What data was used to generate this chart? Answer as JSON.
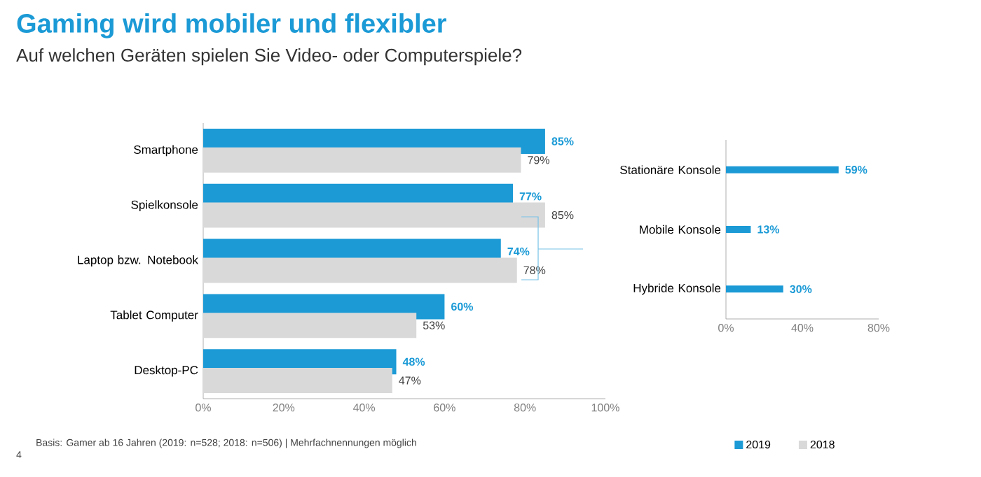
{
  "chart_data": [
    {
      "type": "bar",
      "orientation": "horizontal",
      "title": "Gaming wird mobiler und flexibler",
      "subtitle": "Auf welchen Geräten spielen Sie Video- oder Computerspiele?",
      "categories": [
        "Smartphone",
        "Spielkonsole",
        "Laptop bzw. Notebook",
        "Tablet Computer",
        "Desktop-PC"
      ],
      "series": [
        {
          "name": "2019",
          "color": "#1b9ad6",
          "values": [
            85,
            77,
            74,
            60,
            48
          ],
          "value_labels": [
            "85%",
            "77%",
            "74%",
            "60%",
            "48%"
          ]
        },
        {
          "name": "2018",
          "color": "#d9d9d9",
          "values": [
            79,
            85,
            78,
            53,
            47
          ],
          "value_labels": [
            "79%",
            "85%",
            "78%",
            "53%",
            "47%"
          ]
        }
      ],
      "xlim": [
        0,
        100
      ],
      "xticks": [
        {
          "value": 0,
          "label": "0%"
        },
        {
          "value": 20,
          "label": "20%"
        },
        {
          "value": 40,
          "label": "40%"
        },
        {
          "value": 60,
          "label": "60%"
        },
        {
          "value": 80,
          "label": "80%"
        },
        {
          "value": 100,
          "label": "100%"
        }
      ],
      "legend": "bottom right",
      "annotations": [
        "Basis: Gamer ab 16 Jahren (2019: n=528; 2018: n=506) | Mehrfachnennungen möglich",
        "4"
      ]
    },
    {
      "type": "bar",
      "orientation": "horizontal",
      "categories": [
        "Stationäre Konsole",
        "Mobile Konsole",
        "Hybride Konsole"
      ],
      "series": [
        {
          "color": "#1b9ad6",
          "values": [
            59,
            13,
            30
          ],
          "value_labels": [
            "59%",
            "13%",
            "30%"
          ]
        }
      ],
      "xlim": [
        0,
        80
      ],
      "xticks": [
        {
          "value": 0,
          "label": "0%"
        },
        {
          "value": 40,
          "label": "40%"
        },
        {
          "value": 80,
          "label": "80%"
        }
      ]
    }
  ]
}
